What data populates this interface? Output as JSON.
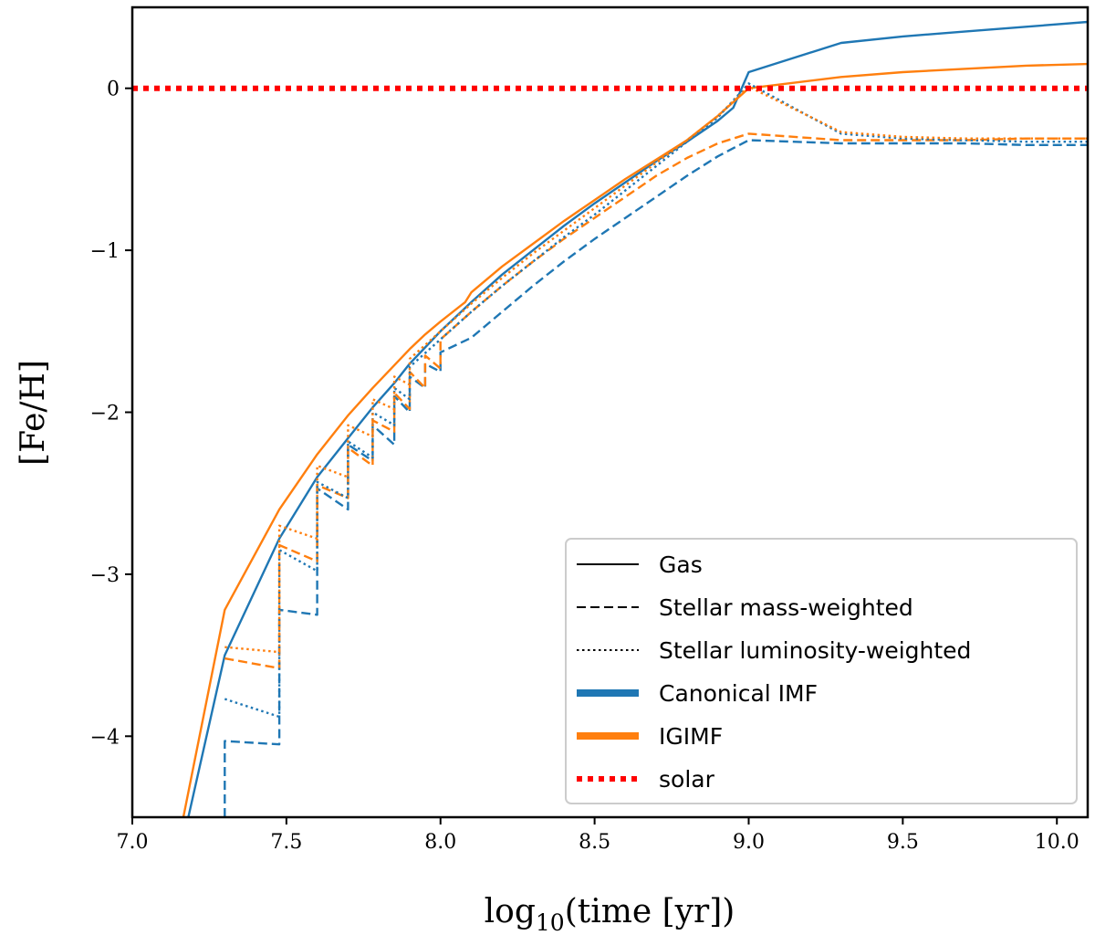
{
  "chart_data": {
    "type": "line",
    "xlabel": {
      "base": "log",
      "sub": "10",
      "rest": "(time [yr])"
    },
    "ylabel": "[Fe/H]",
    "xlim": [
      7.0,
      10.1
    ],
    "ylim": [
      -4.5,
      0.5
    ],
    "xticks": [
      {
        "value": 7.0,
        "label": "7.0"
      },
      {
        "value": 7.5,
        "label": "7.5"
      },
      {
        "value": 8.0,
        "label": "8.0"
      },
      {
        "value": 8.5,
        "label": "8.5"
      },
      {
        "value": 9.0,
        "label": "9.0"
      },
      {
        "value": 9.5,
        "label": "9.5"
      },
      {
        "value": 10.0,
        "label": "10.0"
      }
    ],
    "yticks": [
      {
        "value": 0,
        "label": "0"
      },
      {
        "value": -1,
        "label": "−1"
      },
      {
        "value": -2,
        "label": "−2"
      },
      {
        "value": -3,
        "label": "−3"
      },
      {
        "value": -4,
        "label": "−4"
      }
    ],
    "grid": false,
    "legend_position": "bottom-right",
    "legend": [
      {
        "label": "Gas",
        "style": "solid",
        "color": "#000000",
        "width": 2
      },
      {
        "label": "Stellar mass-weighted",
        "style": "dashed",
        "color": "#000000",
        "width": 2
      },
      {
        "label": "Stellar luminosity-weighted",
        "style": "dotted",
        "color": "#000000",
        "width": 2
      },
      {
        "label": "Canonical IMF",
        "style": "solid",
        "color": "#1f77b4",
        "width": 8
      },
      {
        "label": "IGIMF",
        "style": "solid",
        "color": "#ff7f0e",
        "width": 8
      },
      {
        "label": "solar",
        "style": "dotted",
        "color": "#ff0000",
        "width": 6
      }
    ],
    "reference_lines": [
      {
        "label": "solar",
        "y": 0,
        "color": "#ff0000",
        "style": "dotted"
      }
    ],
    "series": [
      {
        "imf": "Canonical IMF",
        "kind": "Gas",
        "color": "#1f77b4",
        "style": "solid",
        "x": [
          7.17,
          7.3,
          7.477,
          7.6,
          7.7,
          7.78,
          7.85,
          7.9,
          7.95,
          8.0,
          8.1,
          8.2,
          8.3,
          8.4,
          8.5,
          8.6,
          8.7,
          8.8,
          8.9,
          8.95,
          9.0,
          9.3,
          9.5,
          9.7,
          9.9,
          10.1
        ],
        "y": [
          -4.6,
          -3.5,
          -2.78,
          -2.4,
          -2.16,
          -1.97,
          -1.82,
          -1.7,
          -1.6,
          -1.5,
          -1.32,
          -1.15,
          -1.0,
          -0.85,
          -0.71,
          -0.58,
          -0.45,
          -0.33,
          -0.2,
          -0.12,
          0.1,
          0.28,
          0.32,
          0.35,
          0.38,
          0.41
        ]
      },
      {
        "imf": "IGIMF",
        "kind": "Gas",
        "color": "#ff7f0e",
        "style": "solid",
        "x": [
          7.155,
          7.3,
          7.477,
          7.6,
          7.7,
          7.78,
          7.85,
          7.9,
          7.95,
          8.0,
          8.08,
          8.1,
          8.2,
          8.3,
          8.4,
          8.5,
          8.6,
          8.7,
          8.8,
          8.9,
          9.0,
          9.3,
          9.5,
          9.7,
          9.9,
          10.1
        ],
        "y": [
          -4.6,
          -3.22,
          -2.6,
          -2.26,
          -2.02,
          -1.85,
          -1.71,
          -1.61,
          -1.52,
          -1.44,
          -1.32,
          -1.26,
          -1.1,
          -0.96,
          -0.82,
          -0.69,
          -0.56,
          -0.44,
          -0.32,
          -0.17,
          0.0,
          0.07,
          0.1,
          0.12,
          0.14,
          0.15
        ]
      },
      {
        "imf": "Canonical IMF",
        "kind": "Stellar mass-weighted",
        "color": "#1f77b4",
        "style": "dashed",
        "x": [
          7.3,
          7.3,
          7.477,
          7.477,
          7.6,
          7.6,
          7.7,
          7.7,
          7.78,
          7.78,
          7.85,
          7.85,
          7.9,
          7.9,
          7.95,
          7.95,
          8.0,
          8.0,
          8.1,
          8.2,
          8.3,
          8.4,
          8.5,
          8.6,
          8.7,
          8.8,
          8.9,
          9.0,
          9.3,
          9.5,
          9.7,
          9.9,
          10.1
        ],
        "y": [
          -4.5,
          -4.03,
          -4.05,
          -3.22,
          -3.25,
          -2.47,
          -2.6,
          -2.2,
          -2.3,
          -2.08,
          -2.2,
          -1.9,
          -2.0,
          -1.78,
          -1.85,
          -1.7,
          -1.75,
          -1.63,
          -1.54,
          -1.38,
          -1.22,
          -1.07,
          -0.93,
          -0.8,
          -0.67,
          -0.54,
          -0.42,
          -0.32,
          -0.34,
          -0.34,
          -0.34,
          -0.35,
          -0.35
        ]
      },
      {
        "imf": "IGIMF",
        "kind": "Stellar mass-weighted",
        "color": "#ff7f0e",
        "style": "dashed",
        "x": [
          7.3,
          7.477,
          7.477,
          7.6,
          7.6,
          7.7,
          7.7,
          7.78,
          7.78,
          7.85,
          7.85,
          7.9,
          7.9,
          7.95,
          7.95,
          8.0,
          8.0,
          8.1,
          8.2,
          8.3,
          8.4,
          8.5,
          8.6,
          8.7,
          8.8,
          8.9,
          9.0,
          9.3,
          9.5,
          9.7,
          9.9,
          10.1
        ],
        "y": [
          -3.52,
          -3.58,
          -2.82,
          -2.92,
          -2.45,
          -2.53,
          -2.22,
          -2.33,
          -2.05,
          -2.12,
          -1.88,
          -1.98,
          -1.75,
          -1.85,
          -1.65,
          -1.73,
          -1.55,
          -1.38,
          -1.22,
          -1.07,
          -0.93,
          -0.8,
          -0.67,
          -0.54,
          -0.43,
          -0.34,
          -0.28,
          -0.32,
          -0.32,
          -0.32,
          -0.31,
          -0.31
        ]
      },
      {
        "imf": "Canonical IMF",
        "kind": "Stellar luminosity-weighted",
        "color": "#1f77b4",
        "style": "dotted",
        "x": [
          7.3,
          7.477,
          7.477,
          7.6,
          7.6,
          7.7,
          7.7,
          7.78,
          7.78,
          7.85,
          7.85,
          7.9,
          7.9,
          8.0,
          8.1,
          8.2,
          8.3,
          8.4,
          8.5,
          8.6,
          8.7,
          8.8,
          8.9,
          9.0,
          9.3,
          9.5,
          9.7,
          9.9,
          10.1
        ],
        "y": [
          -3.77,
          -3.88,
          -2.85,
          -2.98,
          -2.43,
          -2.53,
          -2.18,
          -2.28,
          -2.0,
          -2.08,
          -1.85,
          -1.92,
          -1.72,
          -1.55,
          -1.38,
          -1.22,
          -1.07,
          -0.92,
          -0.78,
          -0.63,
          -0.48,
          -0.33,
          -0.18,
          0.03,
          -0.28,
          -0.31,
          -0.32,
          -0.33,
          -0.33
        ]
      },
      {
        "imf": "IGIMF",
        "kind": "Stellar luminosity-weighted",
        "color": "#ff7f0e",
        "style": "dotted",
        "x": [
          7.3,
          7.477,
          7.477,
          7.6,
          7.6,
          7.7,
          7.7,
          7.78,
          7.78,
          7.85,
          7.85,
          7.9,
          7.9,
          8.0,
          8.1,
          8.2,
          8.3,
          8.4,
          8.5,
          8.6,
          8.7,
          8.8,
          8.9,
          9.0,
          9.3,
          9.5,
          9.7,
          9.9,
          10.1
        ],
        "y": [
          -3.45,
          -3.48,
          -2.7,
          -2.78,
          -2.33,
          -2.4,
          -2.08,
          -2.15,
          -1.92,
          -1.98,
          -1.78,
          -1.83,
          -1.67,
          -1.5,
          -1.33,
          -1.17,
          -1.02,
          -0.88,
          -0.74,
          -0.6,
          -0.46,
          -0.32,
          -0.17,
          0.01,
          -0.27,
          -0.3,
          -0.31,
          -0.31,
          -0.31
        ]
      }
    ]
  }
}
